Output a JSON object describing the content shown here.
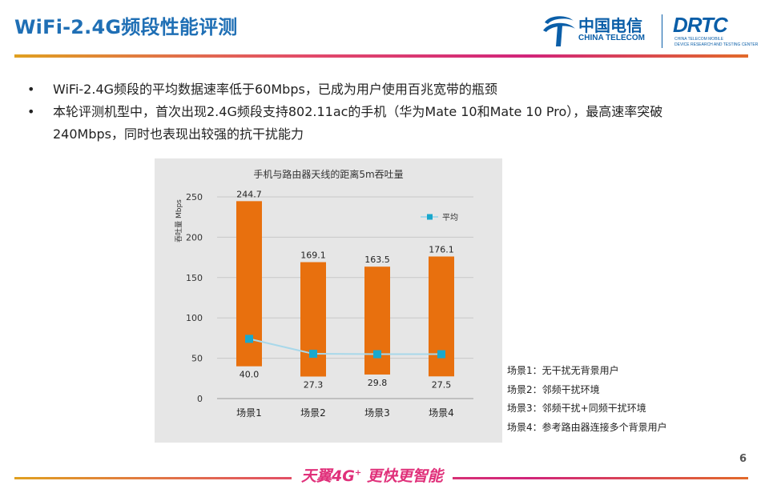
{
  "page": {
    "title": "WiFi-2.4G频段性能评测",
    "page_number": "6",
    "slogan_main": "天翼4G",
    "slogan_sup": "+",
    "slogan_rest": " 更快更智能"
  },
  "logo": {
    "ct_name": "中国电信",
    "ct_en": "CHINA TELECOM",
    "drtc": "DRTC",
    "drtc_line1": "CHINA TELECOM MOBILE",
    "drtc_line2": "DEVICE RESEARCH AND TESTING CENTER"
  },
  "bullets": [
    "WiFi-2.4G频段的平均数据速率低于60Mbps，已成为用户使用百兆宽带的瓶颈",
    "本轮评测机型中，首次出现2.4G频段支持802.11ac的手机（华为Mate 10和Mate 10 Pro），最高速率突破240Mbps，同时也表现出较强的抗干扰能力"
  ],
  "notes": [
    "场景1：无干扰无背景用户",
    "场景2：邻频干扰环境",
    "场景3：邻频干扰+同频干扰环境",
    "场景4：参考路由器连接多个背景用户"
  ],
  "chart_data": {
    "type": "bar",
    "title": "手机与路由器天线的距离5m吞吐量",
    "ylabel": "吞吐量 Mbps",
    "xlabel": "",
    "ylim": [
      0,
      250
    ],
    "yticks": [
      0,
      50,
      100,
      150,
      200,
      250
    ],
    "categories": [
      "场景1",
      "场景2",
      "场景3",
      "场景4"
    ],
    "bar_max": [
      244.7,
      169.1,
      163.5,
      176.1
    ],
    "bar_min": [
      40.0,
      27.3,
      29.8,
      27.5
    ],
    "max_labels": [
      "244.7",
      "169.1",
      "163.5",
      "176.1"
    ],
    "min_labels": [
      "40.0",
      "27.3",
      "29.8",
      "27.5"
    ],
    "series": [
      {
        "name": "平均",
        "type": "line",
        "values": [
          74.0,
          55.5,
          55.0,
          55.0
        ]
      }
    ],
    "legend_position": "top-right",
    "bar_color": "#e8700e",
    "line_color": "#a8d8ea",
    "marker_color": "#1aa8cc"
  }
}
